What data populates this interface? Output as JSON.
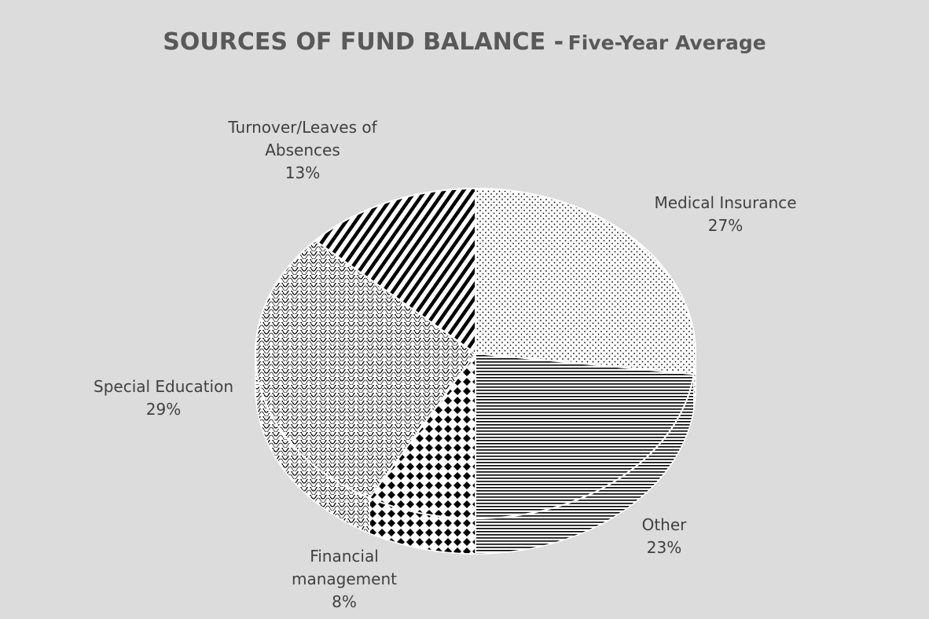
{
  "chart_data": {
    "type": "pie",
    "title": "SOURCES OF FUND BALANCE -",
    "subtitle": "Five-Year Average",
    "categories": [
      "Medical Insurance",
      "Other",
      "Financial management",
      "Special Education",
      "Turnover/Leaves of Absences"
    ],
    "values": [
      27,
      23,
      8,
      29,
      13
    ],
    "value_labels": [
      "27%",
      "23%",
      "8%",
      "29%",
      "13%"
    ]
  }
}
